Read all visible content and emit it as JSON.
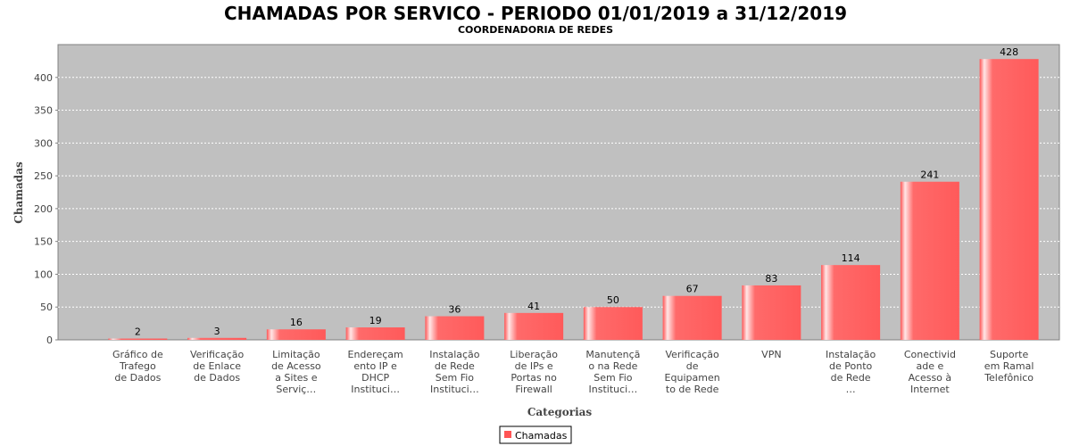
{
  "chart_data": {
    "type": "bar",
    "title": "CHAMADAS POR SERVICO - PERIODO 01/01/2019 a 31/12/2019",
    "subtitle": "COORDENADORIA DE REDES",
    "xlabel": "Categorias",
    "ylabel": "Chamadas",
    "ylim": [
      0,
      450
    ],
    "yticks": [
      0,
      50,
      100,
      150,
      200,
      250,
      300,
      350,
      400
    ],
    "grid": true,
    "legend_position": "bottom",
    "bar_color": "#ff5555",
    "plot_background": "#c0c0c0",
    "categories": [
      [
        "Gráfico de",
        "Trafego",
        "de Dados"
      ],
      [
        "Verificação",
        "de Enlace",
        "de Dados"
      ],
      [
        "Limitação",
        "de Acesso",
        "a Sites e",
        "Serviç…"
      ],
      [
        "Endereçam",
        "ento IP e",
        "DHCP",
        "Instituci…"
      ],
      [
        "Instalação",
        "de Rede",
        "Sem Fio",
        "Instituci…"
      ],
      [
        "Liberação",
        "de IPs e",
        "Portas no",
        "Firewall"
      ],
      [
        "Manutençã",
        "o na Rede",
        "Sem Fio",
        "Instituci…"
      ],
      [
        "Verificação",
        "de",
        "Equipamen",
        "to de Rede"
      ],
      [
        "VPN"
      ],
      [
        "Instalação",
        "de Ponto",
        "de Rede",
        "…"
      ],
      [
        "Conectivid",
        "ade e",
        "Acesso à",
        "Internet"
      ],
      [
        "Suporte",
        "em Ramal",
        "Telefônico"
      ]
    ],
    "series": [
      {
        "name": "Chamadas",
        "values": [
          2,
          3,
          16,
          19,
          36,
          41,
          50,
          67,
          83,
          114,
          241,
          428
        ]
      }
    ]
  }
}
